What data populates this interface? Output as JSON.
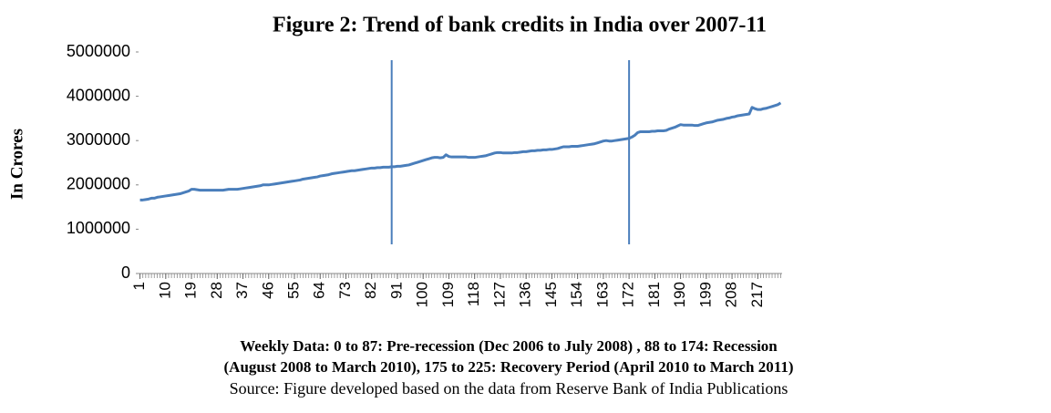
{
  "chart_data": {
    "type": "line",
    "title": "Figure 2: Trend of bank credits in India over 2007-11",
    "y_label": "In Crores",
    "caption": [
      "Weekly Data: 0 to 87: Pre-recession (Dec 2006 to July 2008) , 88 to 174: Recession",
      "(August 2008 to March 2010), 175 to 225: Recovery Period (April  2010 to March 2011)"
    ],
    "source": "Source: Figure developed based on the data from Reserve Bank of India Publications",
    "color": "#4a7ebb",
    "x": [
      1,
      2,
      3,
      4,
      5,
      6,
      7,
      8,
      9,
      10,
      11,
      12,
      13,
      14,
      15,
      16,
      17,
      18,
      19,
      20,
      21,
      22,
      23,
      24,
      25,
      26,
      27,
      28,
      29,
      30,
      31,
      32,
      33,
      34,
      35,
      36,
      37,
      38,
      39,
      40,
      41,
      42,
      43,
      44,
      45,
      46,
      47,
      48,
      49,
      50,
      51,
      52,
      53,
      54,
      55,
      56,
      57,
      58,
      59,
      60,
      61,
      62,
      63,
      64,
      65,
      66,
      67,
      68,
      69,
      70,
      71,
      72,
      73,
      74,
      75,
      76,
      77,
      78,
      79,
      80,
      81,
      82,
      83,
      84,
      85,
      86,
      87,
      88,
      89,
      90,
      91,
      92,
      93,
      94,
      95,
      96,
      97,
      98,
      99,
      100,
      101,
      102,
      103,
      104,
      105,
      106,
      107,
      108,
      109,
      110,
      111,
      112,
      113,
      114,
      115,
      116,
      117,
      118,
      119,
      120,
      121,
      122,
      123,
      124,
      125,
      126,
      127,
      128,
      129,
      130,
      131,
      132,
      133,
      134,
      135,
      136,
      137,
      138,
      139,
      140,
      141,
      142,
      143,
      144,
      145,
      146,
      147,
      148,
      149,
      150,
      151,
      152,
      153,
      154,
      155,
      156,
      157,
      158,
      159,
      160,
      161,
      162,
      163,
      164,
      165,
      166,
      167,
      168,
      169,
      170,
      171,
      172,
      173,
      174,
      175,
      176,
      177,
      178,
      179,
      180,
      181,
      182,
      183,
      184,
      185,
      186,
      187,
      188,
      189,
      190,
      191,
      192,
      193,
      194,
      195,
      196,
      197,
      198,
      199,
      200,
      201,
      202,
      203,
      204,
      205,
      206,
      207,
      208,
      209,
      210,
      211,
      212,
      213,
      214,
      215,
      216,
      217,
      218,
      219,
      220,
      221,
      222,
      223,
      224,
      225
    ],
    "values": [
      1660000,
      1660000,
      1670000,
      1680000,
      1700000,
      1700000,
      1720000,
      1730000,
      1740000,
      1750000,
      1760000,
      1770000,
      1780000,
      1790000,
      1800000,
      1820000,
      1840000,
      1860000,
      1900000,
      1900000,
      1890000,
      1880000,
      1880000,
      1880000,
      1880000,
      1880000,
      1880000,
      1880000,
      1880000,
      1880000,
      1890000,
      1900000,
      1900000,
      1900000,
      1900000,
      1910000,
      1920000,
      1930000,
      1940000,
      1950000,
      1960000,
      1970000,
      1980000,
      2000000,
      2000000,
      2000000,
      2010000,
      2020000,
      2030000,
      2040000,
      2050000,
      2060000,
      2070000,
      2080000,
      2090000,
      2100000,
      2110000,
      2130000,
      2140000,
      2150000,
      2160000,
      2170000,
      2180000,
      2200000,
      2210000,
      2220000,
      2230000,
      2250000,
      2260000,
      2270000,
      2280000,
      2290000,
      2300000,
      2310000,
      2320000,
      2320000,
      2330000,
      2340000,
      2350000,
      2360000,
      2370000,
      2380000,
      2380000,
      2390000,
      2390000,
      2400000,
      2400000,
      2400000,
      2410000,
      2410000,
      2420000,
      2420000,
      2430000,
      2440000,
      2450000,
      2470000,
      2490000,
      2510000,
      2530000,
      2550000,
      2570000,
      2590000,
      2610000,
      2620000,
      2620000,
      2610000,
      2620000,
      2680000,
      2640000,
      2630000,
      2630000,
      2630000,
      2630000,
      2630000,
      2630000,
      2620000,
      2620000,
      2620000,
      2630000,
      2640000,
      2650000,
      2660000,
      2680000,
      2700000,
      2720000,
      2730000,
      2730000,
      2720000,
      2720000,
      2720000,
      2720000,
      2730000,
      2730000,
      2740000,
      2750000,
      2750000,
      2760000,
      2770000,
      2770000,
      2780000,
      2780000,
      2790000,
      2790000,
      2800000,
      2800000,
      2810000,
      2820000,
      2840000,
      2860000,
      2860000,
      2860000,
      2870000,
      2870000,
      2870000,
      2880000,
      2890000,
      2900000,
      2910000,
      2920000,
      2930000,
      2950000,
      2970000,
      2990000,
      3000000,
      2990000,
      2990000,
      3000000,
      3010000,
      3020000,
      3030000,
      3040000,
      3050000,
      3080000,
      3120000,
      3180000,
      3200000,
      3200000,
      3200000,
      3200000,
      3210000,
      3210000,
      3220000,
      3220000,
      3220000,
      3230000,
      3260000,
      3280000,
      3300000,
      3330000,
      3360000,
      3350000,
      3350000,
      3350000,
      3350000,
      3340000,
      3340000,
      3360000,
      3380000,
      3400000,
      3410000,
      3420000,
      3440000,
      3460000,
      3470000,
      3480000,
      3500000,
      3510000,
      3530000,
      3540000,
      3560000,
      3570000,
      3580000,
      3590000,
      3600000,
      3750000,
      3720000,
      3700000,
      3700000,
      3720000,
      3730000,
      3750000,
      3770000,
      3790000,
      3810000,
      3850000
    ],
    "xlim": [
      0.5,
      225.5
    ],
    "xticks": [
      1,
      10,
      19,
      28,
      37,
      46,
      55,
      64,
      73,
      82,
      91,
      100,
      109,
      118,
      127,
      136,
      145,
      154,
      163,
      172,
      181,
      190,
      199,
      208,
      217
    ],
    "ylim": [
      0,
      5000000
    ],
    "yticks": [
      0,
      1000000,
      2000000,
      3000000,
      4000000,
      5000000
    ],
    "vlines": [
      89,
      172
    ]
  }
}
